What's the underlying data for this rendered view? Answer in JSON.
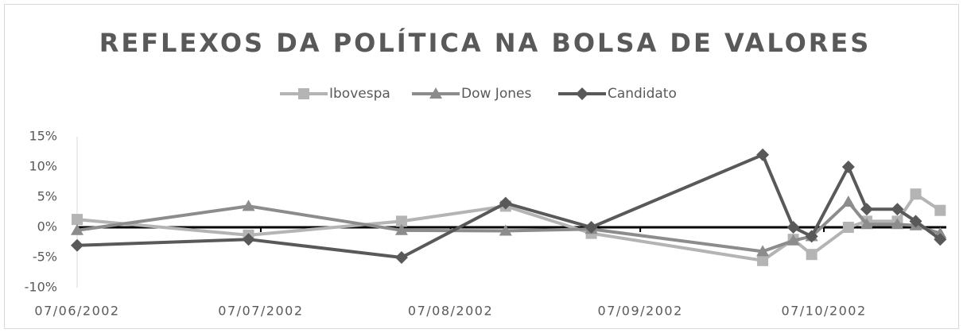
{
  "chart_data": {
    "type": "line",
    "title": "REFLEXOS DA POLÍTICA NA BOLSA DE VALORES",
    "x": [
      "2002-06-07",
      "2002-07-05",
      "2002-07-30",
      "2002-08-16",
      "2002-08-30",
      "2002-09-27",
      "2002-10-02",
      "2002-10-05",
      "2002-10-11",
      "2002-10-14",
      "2002-10-19",
      "2002-10-22",
      "2002-10-26"
    ],
    "series": [
      {
        "name": "Ibovespa",
        "color": "#b4b4b4",
        "marker": "square",
        "values": [
          1.3,
          -1.3,
          1,
          3.5,
          -1,
          -5.5,
          -2,
          -4.5,
          0,
          1,
          1,
          5.5,
          2.8
        ]
      },
      {
        "name": "Dow Jones",
        "color": "#8c8c8c",
        "marker": "triangle",
        "values": [
          -0.5,
          3.5,
          -0.5,
          -0.6,
          -0.3,
          -4,
          -2.2,
          -1.5,
          4.2,
          0.5,
          0.5,
          0.3,
          -1
        ]
      },
      {
        "name": "Candidato",
        "color": "#595959",
        "marker": "diamond",
        "values": [
          -3,
          -2,
          -5,
          4,
          0,
          12,
          0,
          -1.5,
          10,
          3,
          3,
          1,
          -2
        ]
      }
    ],
    "xlim": [
      "2002-06-07",
      "2002-10-27"
    ],
    "xticks": [
      {
        "value": "2002-06-07",
        "label": "07/06/2002"
      },
      {
        "value": "2002-07-07",
        "label": "07/07/2002"
      },
      {
        "value": "2002-08-07",
        "label": "07/08/2002"
      },
      {
        "value": "2002-09-07",
        "label": "07/09/2002"
      },
      {
        "value": "2002-10-07",
        "label": "07/10/2002"
      }
    ],
    "ylim": [
      -10,
      15
    ],
    "yticks": [
      {
        "value": -10,
        "label": "-10%"
      },
      {
        "value": -5,
        "label": "-5%"
      },
      {
        "value": 0,
        "label": "0%"
      },
      {
        "value": 5,
        "label": "5%"
      },
      {
        "value": 10,
        "label": "10%"
      },
      {
        "value": 15,
        "label": "15%"
      }
    ],
    "legend": "top"
  }
}
